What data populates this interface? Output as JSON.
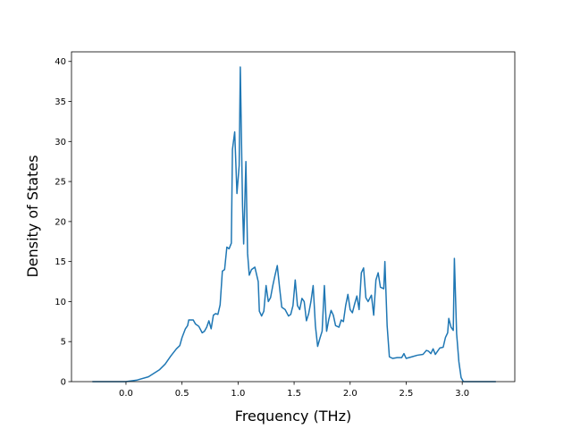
{
  "chart_data": {
    "type": "line",
    "x_label": "Frequency (THz)",
    "y_label": "Density of States",
    "color": "#1f77b4",
    "x": [
      -0.3,
      0.0,
      0.1,
      0.2,
      0.3,
      0.35,
      0.4,
      0.45,
      0.48,
      0.5,
      0.53,
      0.55,
      0.56,
      0.6,
      0.62,
      0.65,
      0.68,
      0.7,
      0.72,
      0.74,
      0.76,
      0.78,
      0.8,
      0.82,
      0.84,
      0.86,
      0.88,
      0.9,
      0.92,
      0.94,
      0.95,
      0.97,
      0.99,
      1.01,
      1.02,
      1.04,
      1.05,
      1.07,
      1.085,
      1.1,
      1.12,
      1.15,
      1.18,
      1.19,
      1.21,
      1.23,
      1.25,
      1.27,
      1.29,
      1.31,
      1.33,
      1.35,
      1.37,
      1.39,
      1.42,
      1.45,
      1.47,
      1.49,
      1.51,
      1.53,
      1.55,
      1.57,
      1.59,
      1.61,
      1.63,
      1.65,
      1.67,
      1.69,
      1.71,
      1.73,
      1.75,
      1.77,
      1.79,
      1.81,
      1.83,
      1.85,
      1.87,
      1.9,
      1.92,
      1.94,
      1.96,
      1.98,
      2.0,
      2.02,
      2.04,
      2.06,
      2.08,
      2.1,
      2.12,
      2.14,
      2.16,
      2.19,
      2.21,
      2.23,
      2.25,
      2.27,
      2.3,
      2.31,
      2.33,
      2.35,
      2.38,
      2.42,
      2.46,
      2.48,
      2.5,
      2.55,
      2.6,
      2.65,
      2.68,
      2.7,
      2.72,
      2.74,
      2.76,
      2.78,
      2.8,
      2.83,
      2.85,
      2.87,
      2.88,
      2.9,
      2.92,
      2.93,
      2.95,
      2.97,
      2.99,
      3.01,
      3.3
    ],
    "values": [
      0,
      0,
      0.2,
      0.6,
      1.5,
      2.2,
      3.2,
      4.1,
      4.5,
      5.5,
      6.6,
      7.0,
      7.7,
      7.7,
      7.2,
      6.9,
      6.1,
      6.3,
      6.8,
      7.6,
      6.6,
      8.3,
      8.5,
      8.4,
      9.6,
      13.8,
      14.0,
      16.8,
      16.6,
      17.3,
      29.0,
      31.2,
      23.5,
      27.0,
      39.3,
      22.0,
      17.2,
      27.5,
      16.0,
      13.3,
      14.0,
      14.3,
      12.5,
      8.8,
      8.2,
      8.8,
      12.0,
      10.0,
      10.5,
      12.0,
      13.3,
      14.5,
      11.8,
      9.3,
      9.0,
      8.2,
      8.4,
      9.5,
      12.7,
      9.5,
      9.0,
      10.4,
      10.0,
      7.6,
      8.5,
      10.0,
      12.0,
      7.0,
      4.4,
      5.4,
      6.3,
      12.0,
      6.3,
      7.8,
      8.9,
      8.3,
      7.0,
      6.8,
      7.7,
      7.5,
      9.5,
      10.9,
      9.0,
      8.6,
      9.7,
      10.7,
      9.0,
      13.6,
      14.2,
      10.5,
      10.0,
      10.8,
      8.3,
      12.7,
      13.6,
      11.8,
      11.6,
      15.0,
      7.0,
      3.1,
      2.9,
      3.0,
      3.0,
      3.5,
      2.9,
      3.1,
      3.3,
      3.4,
      3.9,
      3.8,
      3.5,
      4.1,
      3.4,
      3.8,
      4.2,
      4.3,
      5.5,
      6.1,
      7.9,
      6.8,
      6.4,
      15.4,
      6.0,
      2.5,
      0.5,
      0,
      0
    ],
    "xlim": [
      -0.486,
      3.469
    ],
    "ylim": [
      0,
      41.2
    ],
    "xticks": [
      {
        "value": 0,
        "label": "0.0"
      },
      0.5,
      {
        "value": 1,
        "label": "1.0"
      },
      1.5,
      {
        "value": 2,
        "label": "2.0"
      },
      2.5,
      {
        "value": 3,
        "label": "3.0"
      }
    ],
    "yticks": [
      0,
      5,
      10,
      15,
      20,
      25,
      30,
      35,
      40
    ]
  }
}
